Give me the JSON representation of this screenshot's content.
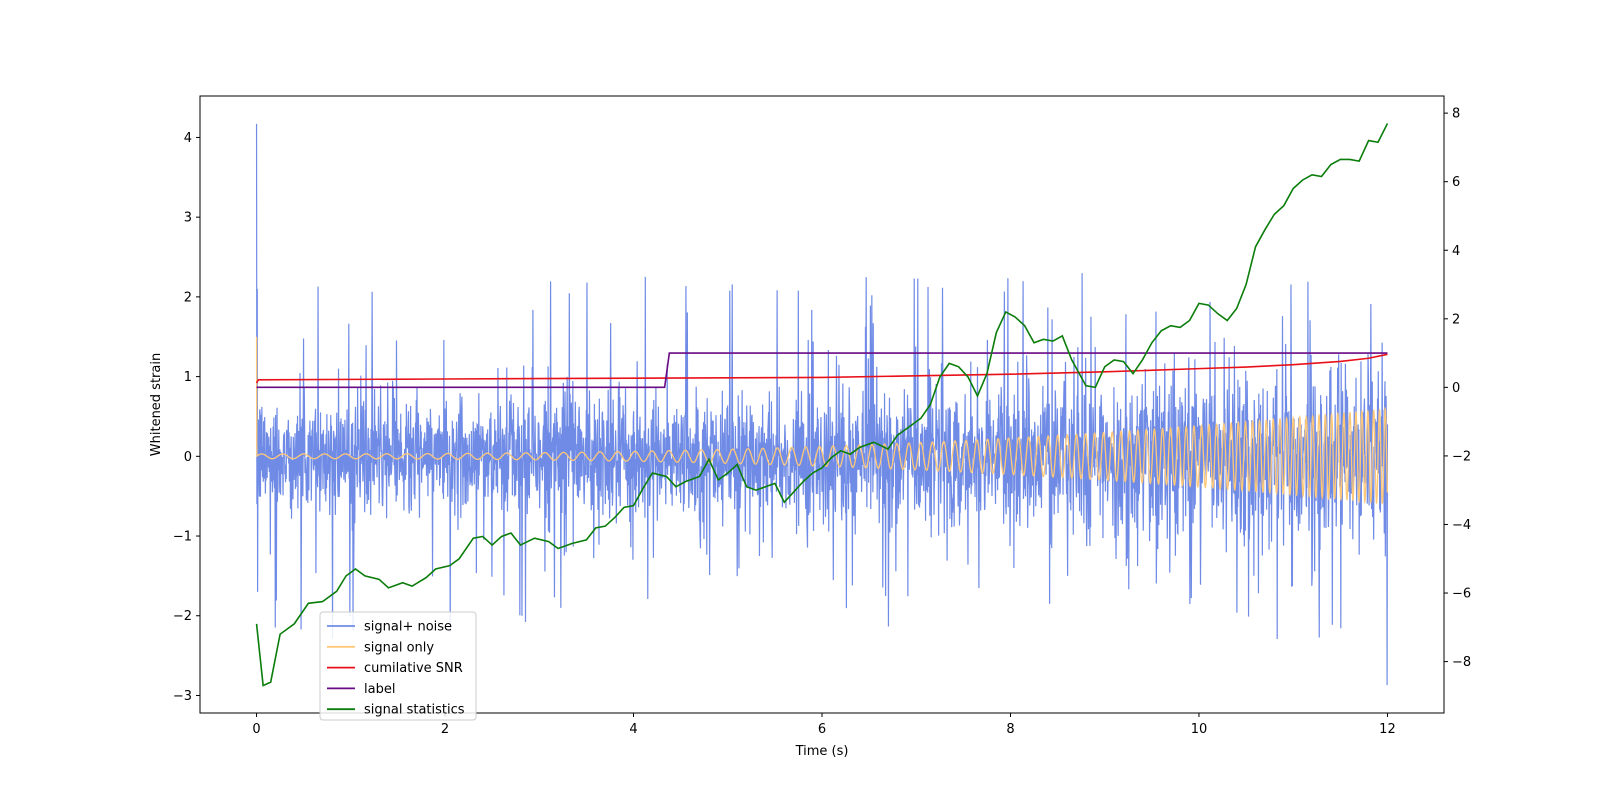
{
  "chart_data": {
    "type": "line",
    "title": "",
    "xlabel": "Time (s)",
    "ylabel": "Whitened strain",
    "ylabel_right": "",
    "xlim": [
      -0.6,
      12.6
    ],
    "ylim": [
      -3.22,
      4.52
    ],
    "ylim_right": [
      -9.5,
      8.5
    ],
    "x_ticks": [
      0,
      2,
      4,
      6,
      8,
      10,
      12
    ],
    "y_ticks": [
      -3,
      -2,
      -1,
      0,
      1,
      2,
      3,
      4
    ],
    "y_ticks_right": [
      -8,
      -6,
      -4,
      -2,
      0,
      2,
      4,
      6,
      8
    ],
    "grid": false,
    "legend_position": "lower-left",
    "series": [
      {
        "name": "signal+ noise",
        "axis": "left",
        "color": "#6f8be6",
        "kind": "noise",
        "duration": 12,
        "typical_envelope": 0.78,
        "spike_max": 2.3,
        "initial_spike": 4.17,
        "final_min": -2.87
      },
      {
        "name": "signal only",
        "axis": "left",
        "color": "#ffc878",
        "kind": "chirp",
        "duration": 12,
        "amplitude_start": 0.03,
        "amplitude_end": 0.6,
        "initial_spike": 1.5
      },
      {
        "name": "cumilative SNR",
        "axis": "left",
        "color": "#e8111a",
        "points": [
          [
            0,
            0.92
          ],
          [
            0.02,
            0.96
          ],
          [
            2,
            0.97
          ],
          [
            4,
            0.98
          ],
          [
            6,
            0.99
          ],
          [
            7,
            1.01
          ],
          [
            8,
            1.03
          ],
          [
            9,
            1.06
          ],
          [
            10,
            1.1
          ],
          [
            10.5,
            1.12
          ],
          [
            11,
            1.15
          ],
          [
            11.5,
            1.19
          ],
          [
            11.8,
            1.23
          ],
          [
            12,
            1.28
          ]
        ]
      },
      {
        "name": "label",
        "axis": "right",
        "color": "#6a0a85",
        "points": [
          [
            0,
            0
          ],
          [
            4.33,
            0
          ],
          [
            4.38,
            1
          ],
          [
            12,
            1
          ]
        ]
      },
      {
        "name": "signal statistics",
        "axis": "right",
        "color": "#0a7d0a",
        "points": [
          [
            0,
            -6.9
          ],
          [
            0.07,
            -8.7
          ],
          [
            0.15,
            -8.6
          ],
          [
            0.25,
            -7.2
          ],
          [
            0.4,
            -6.9
          ],
          [
            0.55,
            -6.3
          ],
          [
            0.7,
            -6.25
          ],
          [
            0.85,
            -5.95
          ],
          [
            0.95,
            -5.5
          ],
          [
            1.05,
            -5.3
          ],
          [
            1.15,
            -5.5
          ],
          [
            1.3,
            -5.6
          ],
          [
            1.4,
            -5.85
          ],
          [
            1.55,
            -5.7
          ],
          [
            1.65,
            -5.8
          ],
          [
            1.8,
            -5.55
          ],
          [
            1.9,
            -5.3
          ],
          [
            2.05,
            -5.2
          ],
          [
            2.15,
            -5.0
          ],
          [
            2.3,
            -4.4
          ],
          [
            2.4,
            -4.35
          ],
          [
            2.5,
            -4.6
          ],
          [
            2.6,
            -4.35
          ],
          [
            2.7,
            -4.25
          ],
          [
            2.8,
            -4.6
          ],
          [
            2.95,
            -4.4
          ],
          [
            3.1,
            -4.5
          ],
          [
            3.2,
            -4.7
          ],
          [
            3.35,
            -4.55
          ],
          [
            3.5,
            -4.45
          ],
          [
            3.6,
            -4.1
          ],
          [
            3.7,
            -4.05
          ],
          [
            3.8,
            -3.8
          ],
          [
            3.9,
            -3.5
          ],
          [
            4.0,
            -3.45
          ],
          [
            4.1,
            -2.95
          ],
          [
            4.2,
            -2.5
          ],
          [
            4.35,
            -2.6
          ],
          [
            4.45,
            -2.9
          ],
          [
            4.55,
            -2.75
          ],
          [
            4.7,
            -2.6
          ],
          [
            4.8,
            -2.1
          ],
          [
            4.9,
            -2.7
          ],
          [
            5.0,
            -2.5
          ],
          [
            5.1,
            -2.25
          ],
          [
            5.2,
            -2.9
          ],
          [
            5.3,
            -3.0
          ],
          [
            5.4,
            -2.9
          ],
          [
            5.5,
            -2.8
          ],
          [
            5.6,
            -3.35
          ],
          [
            5.7,
            -3.05
          ],
          [
            5.8,
            -2.75
          ],
          [
            5.9,
            -2.5
          ],
          [
            6.0,
            -2.35
          ],
          [
            6.1,
            -2.05
          ],
          [
            6.2,
            -1.85
          ],
          [
            6.3,
            -1.95
          ],
          [
            6.4,
            -1.75
          ],
          [
            6.55,
            -1.6
          ],
          [
            6.7,
            -1.8
          ],
          [
            6.8,
            -1.4
          ],
          [
            6.9,
            -1.2
          ],
          [
            7.05,
            -0.9
          ],
          [
            7.15,
            -0.5
          ],
          [
            7.25,
            0.3
          ],
          [
            7.35,
            0.7
          ],
          [
            7.45,
            0.6
          ],
          [
            7.55,
            0.3
          ],
          [
            7.65,
            -0.25
          ],
          [
            7.75,
            0.4
          ],
          [
            7.85,
            1.6
          ],
          [
            7.95,
            2.2
          ],
          [
            8.05,
            2.05
          ],
          [
            8.15,
            1.8
          ],
          [
            8.25,
            1.3
          ],
          [
            8.35,
            1.4
          ],
          [
            8.45,
            1.35
          ],
          [
            8.55,
            1.5
          ],
          [
            8.65,
            0.8
          ],
          [
            8.8,
            0.05
          ],
          [
            8.9,
            0.0
          ],
          [
            9.0,
            0.6
          ],
          [
            9.1,
            0.8
          ],
          [
            9.2,
            0.75
          ],
          [
            9.3,
            0.4
          ],
          [
            9.4,
            0.8
          ],
          [
            9.5,
            1.3
          ],
          [
            9.6,
            1.65
          ],
          [
            9.7,
            1.8
          ],
          [
            9.8,
            1.75
          ],
          [
            9.9,
            1.95
          ],
          [
            10.0,
            2.45
          ],
          [
            10.1,
            2.4
          ],
          [
            10.2,
            2.15
          ],
          [
            10.3,
            1.95
          ],
          [
            10.4,
            2.3
          ],
          [
            10.5,
            3.0
          ],
          [
            10.6,
            4.1
          ],
          [
            10.7,
            4.6
          ],
          [
            10.8,
            5.05
          ],
          [
            10.9,
            5.3
          ],
          [
            11.0,
            5.8
          ],
          [
            11.1,
            6.05
          ],
          [
            11.2,
            6.2
          ],
          [
            11.3,
            6.15
          ],
          [
            11.4,
            6.5
          ],
          [
            11.5,
            6.65
          ],
          [
            11.6,
            6.65
          ],
          [
            11.7,
            6.6
          ],
          [
            11.8,
            7.2
          ],
          [
            11.9,
            7.15
          ],
          [
            12.0,
            7.7
          ]
        ]
      }
    ]
  }
}
